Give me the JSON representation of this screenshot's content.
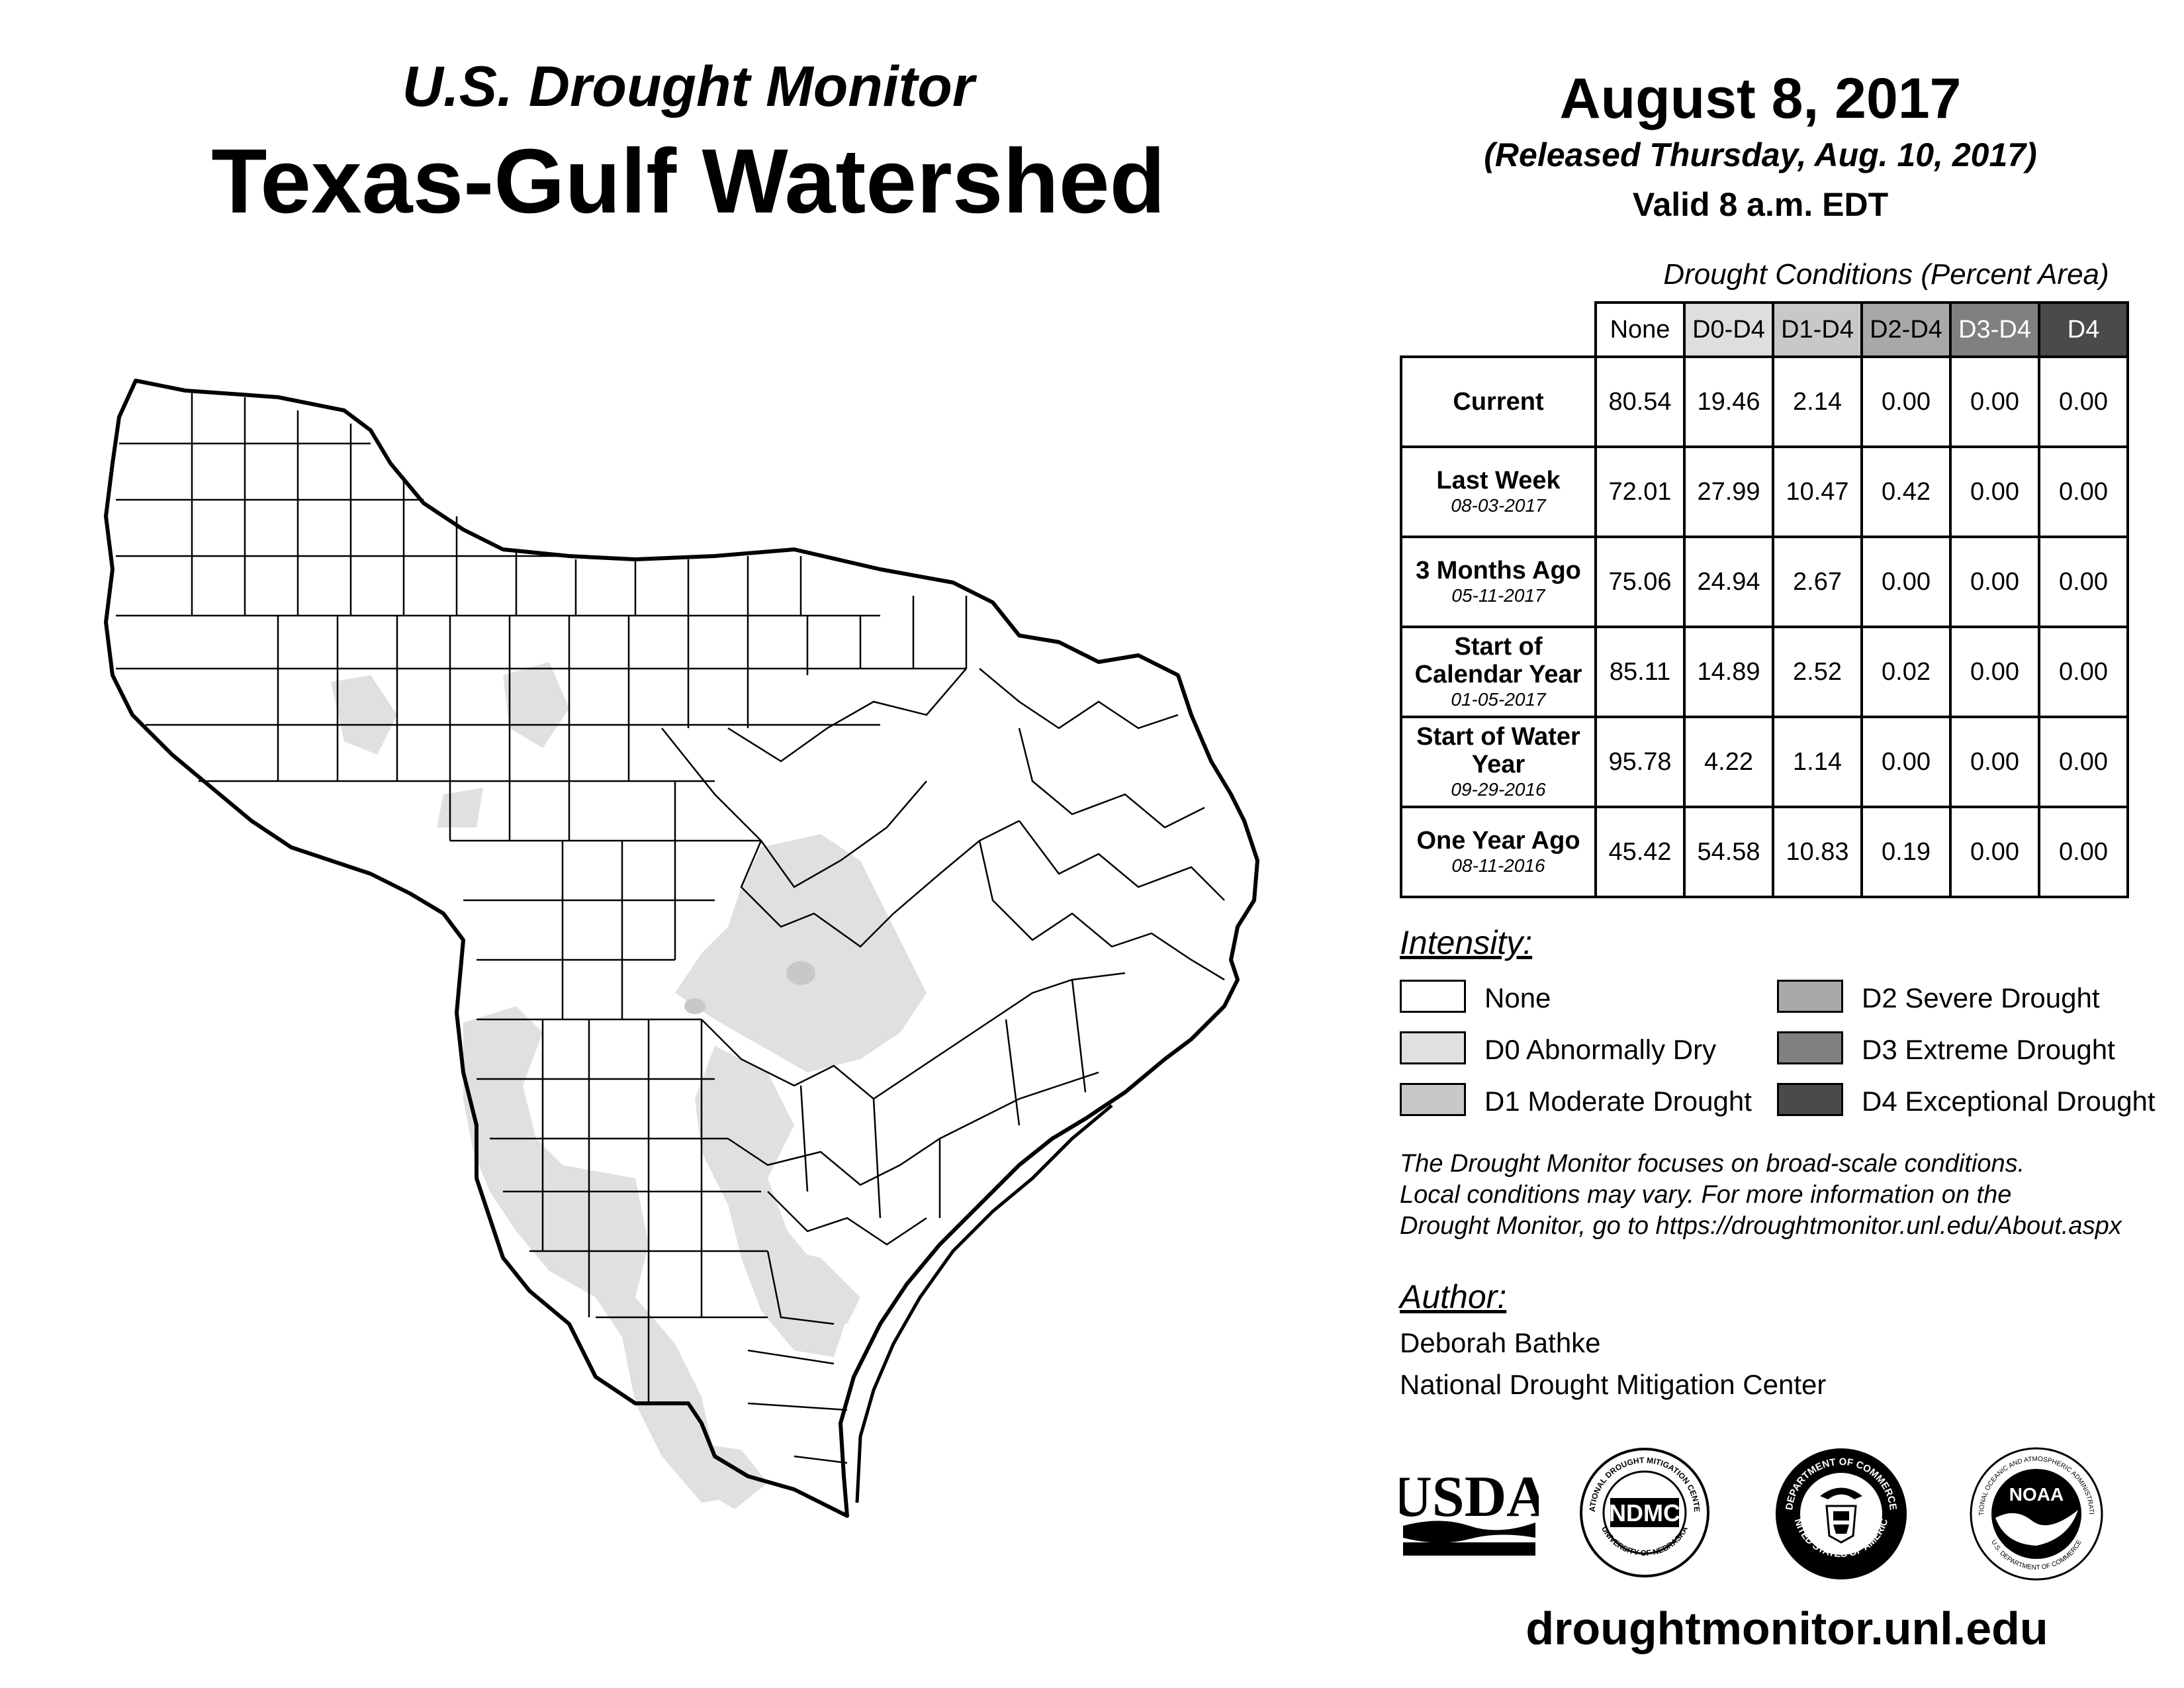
{
  "header": {
    "subtitle": "U.S. Drought Monitor",
    "title": "Texas-Gulf Watershed"
  },
  "date_block": {
    "date": "August 8, 2017",
    "released": "(Released Thursday, Aug. 10, 2017)",
    "valid": "Valid 8 a.m. EDT"
  },
  "table": {
    "caption": "Drought Conditions (Percent Area)",
    "columns": [
      {
        "label": "None",
        "color": "#ffffff",
        "text_color": "#000000"
      },
      {
        "label": "D0-D4",
        "color": "#dedede",
        "text_color": "#000000"
      },
      {
        "label": "D1-D4",
        "color": "#c8c8c8",
        "text_color": "#000000"
      },
      {
        "label": "D2-D4",
        "color": "#a8a8a8",
        "text_color": "#000000"
      },
      {
        "label": "D3-D4",
        "color": "#808080",
        "text_color": "#ffffff"
      },
      {
        "label": "D4",
        "color": "#4a4a4a",
        "text_color": "#ffffff"
      }
    ],
    "rows": [
      {
        "label": "Current",
        "sub": "",
        "values": [
          "80.54",
          "19.46",
          "2.14",
          "0.00",
          "0.00",
          "0.00"
        ]
      },
      {
        "label": "Last Week",
        "sub": "08-03-2017",
        "values": [
          "72.01",
          "27.99",
          "10.47",
          "0.42",
          "0.00",
          "0.00"
        ]
      },
      {
        "label": "3 Months Ago",
        "sub": "05-11-2017",
        "values": [
          "75.06",
          "24.94",
          "2.67",
          "0.00",
          "0.00",
          "0.00"
        ]
      },
      {
        "label": "Start of Calendar Year",
        "sub": "01-05-2017",
        "values": [
          "85.11",
          "14.89",
          "2.52",
          "0.02",
          "0.00",
          "0.00"
        ]
      },
      {
        "label": "Start of Water Year",
        "sub": "09-29-2016",
        "values": [
          "95.78",
          "4.22",
          "1.14",
          "0.00",
          "0.00",
          "0.00"
        ]
      },
      {
        "label": "One Year Ago",
        "sub": "08-11-2016",
        "values": [
          "45.42",
          "54.58",
          "10.83",
          "0.19",
          "0.00",
          "0.00"
        ]
      }
    ]
  },
  "legend": {
    "title": "Intensity:",
    "items": [
      {
        "label": "None",
        "color": "#ffffff"
      },
      {
        "label": "D0 Abnormally Dry",
        "color": "#e0e0e0"
      },
      {
        "label": "D1 Moderate Drought",
        "color": "#c8c8c8"
      },
      {
        "label": "D2 Severe Drought",
        "color": "#a8a8a8"
      },
      {
        "label": "D3 Extreme Drought",
        "color": "#808080"
      },
      {
        "label": "D4 Exceptional Drought",
        "color": "#4a4a4a"
      }
    ]
  },
  "note": {
    "line1": "The Drought Monitor focuses on broad-scale conditions.",
    "line2": "Local conditions may vary. For more information on the",
    "line3": "Drought Monitor, go to https://droughtmonitor.unl.edu/About.aspx"
  },
  "author": {
    "label": "Author:",
    "name": "Deborah Bathke",
    "org": "National Drought Mitigation Center"
  },
  "logos": {
    "usda": "USDA",
    "ndmc": "NDMC",
    "ndmc_ring_top": "NATIONAL DROUGHT MITIGATION CENTER",
    "ndmc_ring_bottom": "UNIVERSITY OF NEBRASKA",
    "doc_ring_top": "DEPARTMENT OF COMMERCE",
    "doc_ring_bottom": "UNITED STATES OF AMERICA",
    "noaa": "NOAA",
    "noaa_ring_top": "NATIONAL OCEANIC AND ATMOSPHERIC ADMINISTRATION",
    "noaa_ring_bottom": "U.S. DEPARTMENT OF COMMERCE"
  },
  "footer": {
    "url": "droughtmonitor.unl.edu"
  },
  "map": {
    "region": "Texas-Gulf Watershed",
    "fill_colors": {
      "none": "#ffffff",
      "d0": "#e0e0e0",
      "d1": "#c8c8c8"
    },
    "outline_color": "#000000",
    "county_line_color": "#000000"
  }
}
